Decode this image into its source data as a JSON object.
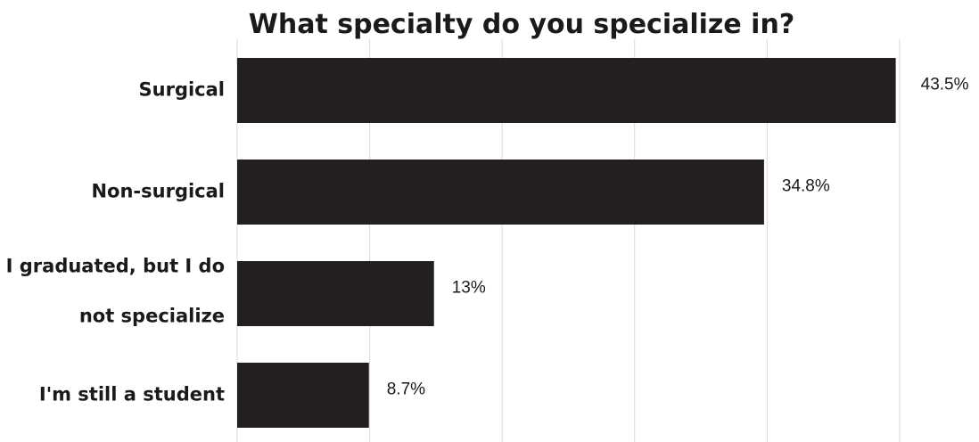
{
  "chart_data": {
    "type": "bar",
    "orientation": "horizontal",
    "title": "What specialty do you specialize in?",
    "categories": [
      [
        "Surgical"
      ],
      [
        "Non-surgical"
      ],
      [
        "I graduated, but I do",
        "not specialize"
      ],
      [
        "I'm still a student"
      ]
    ],
    "values": [
      43.5,
      34.8,
      13,
      8.7
    ],
    "value_labels": [
      "43.5%",
      "34.8%",
      "13%",
      "8.7%"
    ],
    "xlim": [
      0,
      50
    ],
    "grid": true,
    "legend": "none",
    "bar_color": "#231f20"
  }
}
